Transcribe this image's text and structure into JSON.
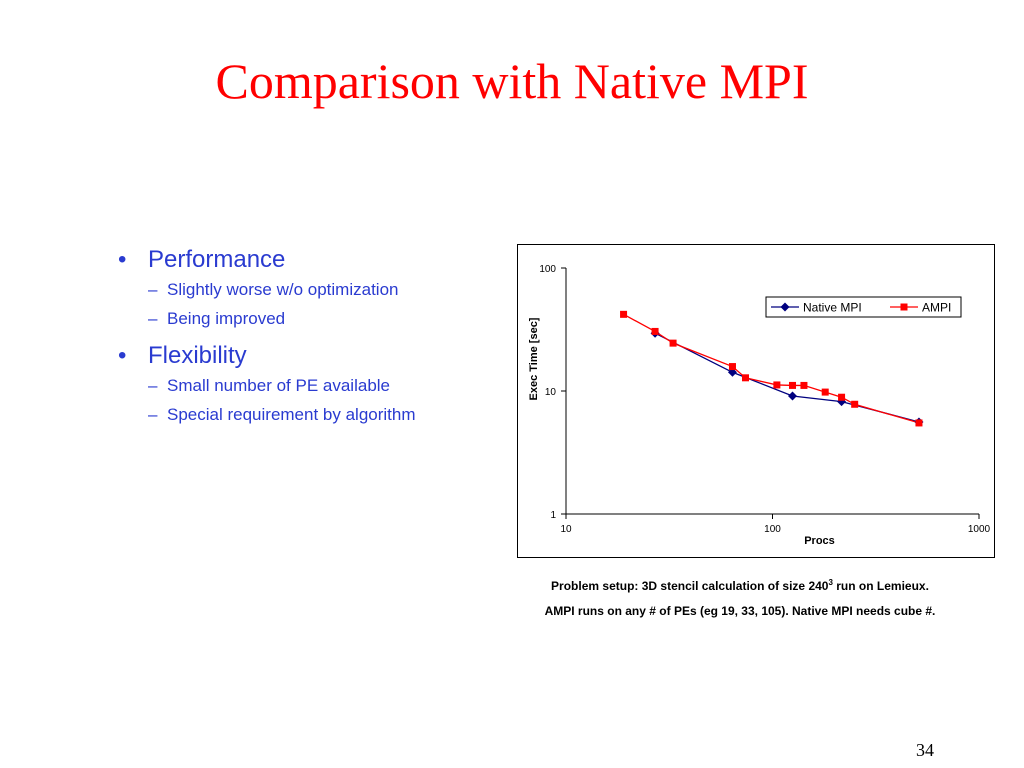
{
  "slide": {
    "title": "Comparison with Native MPI",
    "page_number": "34"
  },
  "bullets": [
    {
      "text": "Performance",
      "sub": [
        "Slightly worse w/o optimization",
        "Being improved"
      ]
    },
    {
      "text": "Flexibility",
      "sub": [
        "Small number of PE available",
        "Special requirement by algorithm"
      ]
    }
  ],
  "bullet_marks": {
    "level1": "•",
    "level2": "–"
  },
  "captions": {
    "line1_pre": "Problem setup: 3D stencil calculation of size 240",
    "line1_sup": "3",
    "line1_post": " run on Lemieux.",
    "line2": "AMPI runs on any # of PEs (eg 19, 33, 105). Native MPI needs cube #."
  },
  "chart_data": {
    "type": "line",
    "title": "",
    "xlabel": "Procs",
    "ylabel": "Exec Time [sec]",
    "xscale": "log",
    "yscale": "log",
    "xlim": [
      10,
      1000
    ],
    "ylim": [
      1,
      100
    ],
    "xticks": [
      "10",
      "100",
      "1000"
    ],
    "yticks": [
      "1",
      "10",
      "100"
    ],
    "legend_position": "top-right",
    "grid": false,
    "series": [
      {
        "name": "Native MPI",
        "color": "#00007f",
        "marker": "diamond",
        "points": [
          [
            27,
            29.5
          ],
          [
            64,
            14.2
          ],
          [
            125,
            9.1
          ],
          [
            216,
            8.2
          ],
          [
            512,
            5.6
          ]
        ]
      },
      {
        "name": "AMPI",
        "color": "#ff0000",
        "marker": "square",
        "points": [
          [
            19,
            42
          ],
          [
            27,
            30.5
          ],
          [
            33,
            24.5
          ],
          [
            64,
            15.8
          ],
          [
            74,
            12.8
          ],
          [
            105,
            11.2
          ],
          [
            125,
            11.1
          ],
          [
            142,
            11.1
          ],
          [
            180,
            9.8
          ],
          [
            216,
            8.9
          ],
          [
            250,
            7.8
          ],
          [
            512,
            5.5
          ]
        ]
      }
    ]
  }
}
